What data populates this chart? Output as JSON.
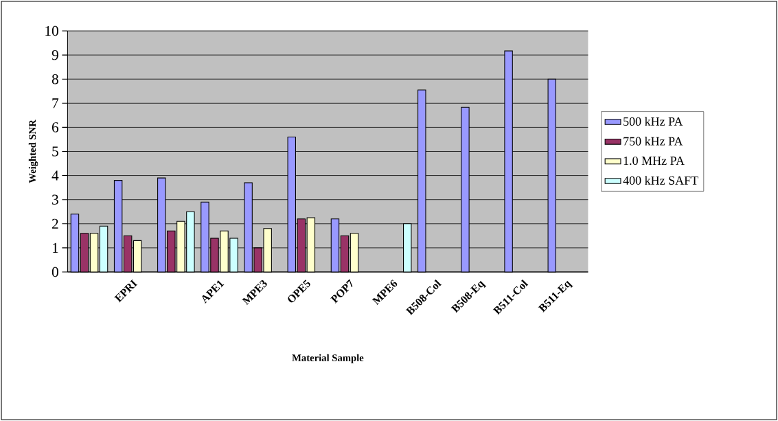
{
  "chart_data": {
    "type": "bar",
    "xlabel": "Material Sample",
    "ylabel": "Weighted SNR",
    "categories": [
      null,
      "EPRI",
      null,
      "APE1",
      "MPE3",
      "OPE5",
      "POP7",
      "MPE6",
      "B508-Col",
      "B508-Eq",
      "B511-Col",
      "B511-Eq"
    ],
    "series": [
      {
        "name": "500 kHz PA",
        "color": "#9999ff",
        "values": [
          2.4,
          3.8,
          3.9,
          2.9,
          3.7,
          5.6,
          2.2,
          null,
          7.55,
          6.83,
          9.17,
          8.0
        ]
      },
      {
        "name": "750 kHz PA",
        "color": "#993366",
        "values": [
          1.6,
          1.5,
          1.7,
          1.4,
          1.0,
          2.2,
          1.5,
          null,
          null,
          null,
          null,
          null
        ]
      },
      {
        "name": "1.0 MHz PA",
        "color": "#ffffcc",
        "values": [
          1.6,
          1.3,
          2.1,
          1.7,
          1.8,
          2.25,
          1.6,
          null,
          null,
          null,
          null,
          null
        ]
      },
      {
        "name": "400 kHz SAFT",
        "color": "#ccffff",
        "values": [
          1.9,
          null,
          2.5,
          1.4,
          null,
          null,
          null,
          2.0,
          null,
          null,
          null,
          null
        ]
      }
    ],
    "ylim": [
      0,
      10
    ],
    "yticks": [
      0,
      1,
      2,
      3,
      4,
      5,
      6,
      7,
      8,
      9,
      10
    ],
    "grid": "y",
    "legend": "right"
  }
}
